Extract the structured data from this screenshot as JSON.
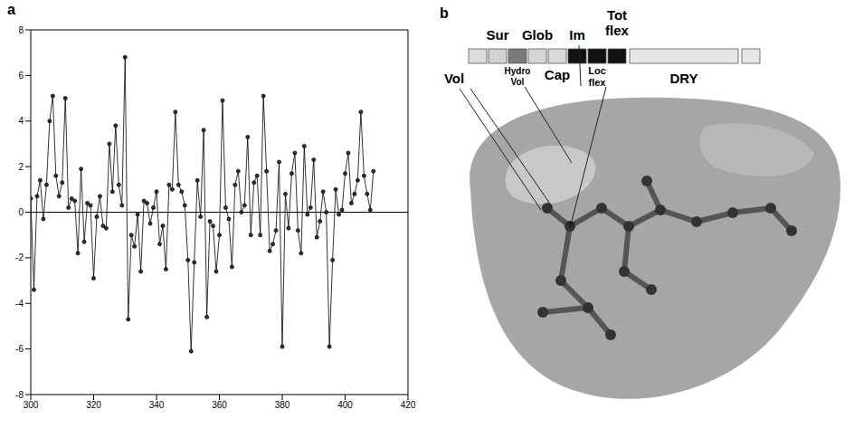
{
  "chart_data": {
    "type": "line",
    "panel": "a",
    "marker": "circle",
    "line_style": "solid",
    "color": "#000000",
    "x": [
      300,
      301,
      302,
      303,
      304,
      305,
      306,
      307,
      308,
      309,
      310,
      311,
      312,
      313,
      314,
      315,
      316,
      317,
      318,
      319,
      320,
      321,
      322,
      323,
      324,
      325,
      326,
      327,
      328,
      329,
      330,
      331,
      332,
      333,
      334,
      335,
      336,
      337,
      338,
      339,
      340,
      341,
      342,
      343,
      344,
      345,
      346,
      347,
      348,
      349,
      350,
      351,
      352,
      353,
      354,
      355,
      356,
      357,
      358,
      359,
      360,
      361,
      362,
      363,
      364,
      365,
      366,
      367,
      368,
      369,
      370,
      371,
      372,
      373,
      374,
      375,
      376,
      377,
      378,
      379,
      380,
      381,
      382,
      383,
      384,
      385,
      386,
      387,
      388,
      389,
      390,
      391,
      392,
      393,
      394,
      395,
      396,
      397,
      398,
      399,
      400,
      401,
      402,
      403,
      404,
      405,
      406,
      407,
      408,
      409
    ],
    "values": [
      0.6,
      -3.4,
      0.7,
      1.4,
      -0.3,
      1.2,
      4.0,
      5.1,
      1.6,
      0.7,
      1.3,
      5.0,
      0.2,
      0.6,
      0.5,
      -1.8,
      1.9,
      -1.3,
      0.4,
      0.3,
      -2.9,
      -0.2,
      0.7,
      -0.6,
      -0.7,
      3.0,
      0.9,
      3.8,
      1.2,
      0.3,
      6.8,
      -4.7,
      -1.0,
      -1.5,
      -0.1,
      -2.6,
      0.5,
      0.4,
      -0.5,
      0.2,
      0.9,
      -1.4,
      -0.6,
      -2.5,
      1.2,
      1.0,
      4.4,
      1.2,
      0.9,
      0.3,
      -2.1,
      -6.1,
      -2.2,
      1.4,
      -0.2,
      3.6,
      -4.6,
      -0.4,
      -0.6,
      -2.6,
      -1.0,
      4.9,
      0.2,
      -0.3,
      -2.4,
      1.2,
      1.8,
      0.0,
      0.3,
      3.3,
      -1.0,
      1.3,
      1.6,
      -1.0,
      5.1,
      1.8,
      -1.7,
      -1.4,
      -0.8,
      2.2,
      -5.9,
      0.8,
      -0.7,
      1.7,
      2.6,
      -0.8,
      -1.8,
      2.9,
      -0.1,
      0.2,
      2.3,
      -1.1,
      -0.4,
      0.9,
      0.0,
      -5.9,
      -2.1,
      1.0,
      -0.1,
      0.1,
      1.7,
      2.6,
      0.4,
      0.8,
      1.4,
      4.4,
      1.6,
      0.8,
      0.1,
      1.8
    ],
    "xlim": [
      300,
      420
    ],
    "xticks": [
      300,
      320,
      340,
      360,
      380,
      400,
      420
    ],
    "ylim": [
      -8,
      8
    ],
    "yticks": [
      -8,
      -6,
      -4,
      -2,
      0,
      2,
      4,
      6,
      8
    ],
    "reference_y": 0
  },
  "diagram": {
    "panel": "b",
    "labels": [
      "Sur",
      "Glob",
      "Im",
      "Tot flex",
      "Vol",
      "Hydro Vol",
      "Cap",
      "Loc flex",
      "DRY"
    ]
  }
}
